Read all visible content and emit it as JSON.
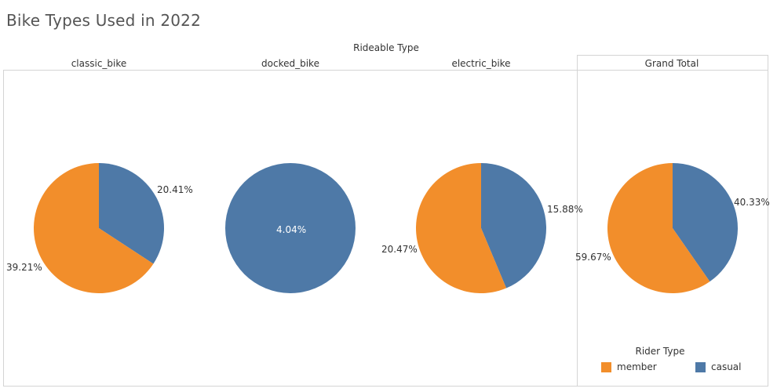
{
  "title": "Bike Types Used in 2022",
  "group_header": "Rideable Type",
  "colors": {
    "member": "#f28e2b",
    "casual": "#4e79a7"
  },
  "legend": {
    "title": "Rider Type",
    "items": [
      {
        "label": "member",
        "color": "#f28e2b"
      },
      {
        "label": "casual",
        "color": "#4e79a7"
      }
    ]
  },
  "chart_data": {
    "type": "pie",
    "title": "Bike Types Used in 2022",
    "facet_title": "Rideable Type",
    "legend_title": "Rider Type",
    "legend_placement": "bottom-right",
    "series_order": [
      "member",
      "casual"
    ],
    "panels": [
      {
        "name": "classic_bike",
        "slices": [
          {
            "name": "member",
            "value": 39.21,
            "label": "39.21%"
          },
          {
            "name": "casual",
            "value": 20.41,
            "label": "20.41%"
          }
        ]
      },
      {
        "name": "docked_bike",
        "slices": [
          {
            "name": "casual",
            "value": 4.04,
            "label": "4.04%"
          }
        ]
      },
      {
        "name": "electric_bike",
        "slices": [
          {
            "name": "member",
            "value": 20.47,
            "label": "20.47%"
          },
          {
            "name": "casual",
            "value": 15.88,
            "label": "15.88%"
          }
        ]
      },
      {
        "name": "Grand Total",
        "slices": [
          {
            "name": "member",
            "value": 59.67,
            "label": "59.67%"
          },
          {
            "name": "casual",
            "value": 40.33,
            "label": "40.33%"
          }
        ]
      }
    ]
  }
}
